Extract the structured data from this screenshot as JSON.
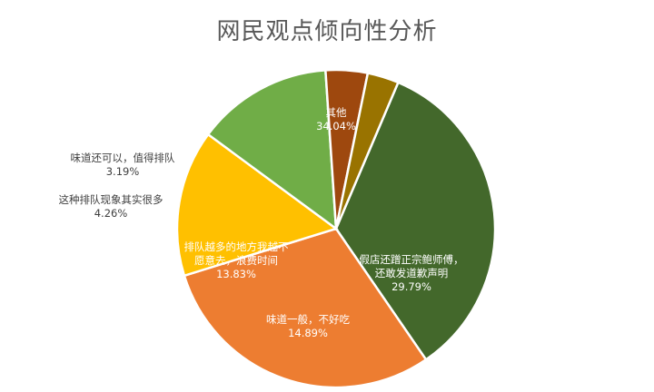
{
  "chart_data": {
    "type": "pie",
    "title": "网民观点倾向性分析",
    "legend": "none",
    "slices": [
      {
        "label": "其他",
        "value": 34.04,
        "value_text": "34.04%",
        "color": "#43682b",
        "label_color": "#ffffff"
      },
      {
        "label": "假店还蹭正宗鲍师傅，还敢发道歉声明",
        "value": 29.79,
        "value_text": "29.79%",
        "color": "#ed7d31",
        "label_color": "#ffffff"
      },
      {
        "label": "味道一般，不好吃",
        "value": 14.89,
        "value_text": "14.89%",
        "color": "#ffc000",
        "label_color": "#ffffff"
      },
      {
        "label": "排队越多的地方我越不愿意去，浪费时间",
        "value": 13.83,
        "value_text": "13.83%",
        "color": "#70ad47",
        "label_color": "#ffffff"
      },
      {
        "label": "这种排队现象其实很多",
        "value": 4.26,
        "value_text": "4.26%",
        "color": "#9e480e",
        "label_color": "#404040"
      },
      {
        "label": "味道还可以，值得排队",
        "value": 3.19,
        "value_text": "3.19%",
        "color": "#997300",
        "label_color": "#404040"
      }
    ]
  }
}
